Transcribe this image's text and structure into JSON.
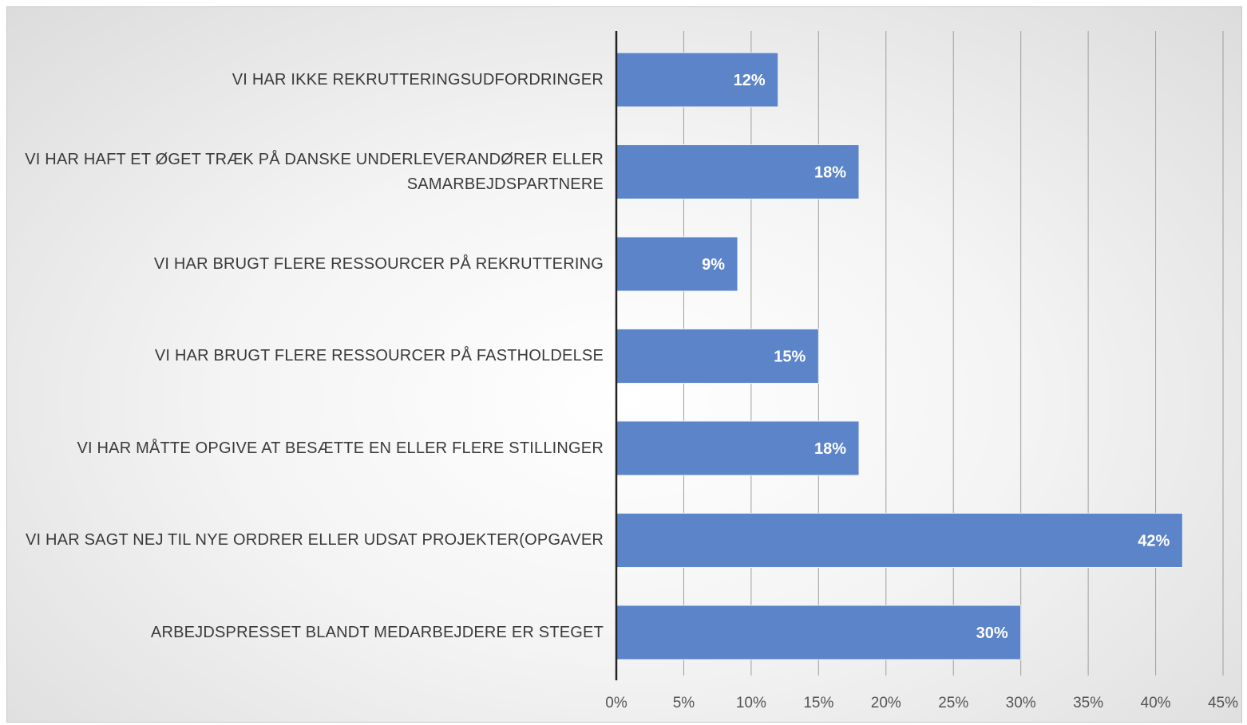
{
  "chart_data": {
    "type": "bar",
    "orientation": "horizontal",
    "categories": [
      "VI HAR IKKE REKRUTTERINGSUDFORDRINGER",
      "VI HAR HAFT ET ØGET TRÆK PÅ DANSKE UNDERLEVERANDØRER ELLER SAMARBEJDSPARTNERE",
      "VI HAR BRUGT FLERE RESSOURCER PÅ REKRUTTERING",
      "VI HAR BRUGT FLERE RESSOURCER PÅ FASTHOLDELSE",
      "VI HAR MÅTTE OPGIVE AT BESÆTTE EN ELLER FLERE STILLINGER",
      "VI HAR SAGT NEJ TIL NYE ORDRER ELLER UDSAT PROJEKTER(OPGAVER",
      "ARBEJDSPRESSET BLANDT MEDARBEJDERE ER STEGET"
    ],
    "values": [
      12,
      18,
      9,
      15,
      18,
      42,
      30
    ],
    "data_labels": [
      "12%",
      "18%",
      "9%",
      "15%",
      "18%",
      "42%",
      "30%"
    ],
    "xlim": [
      0,
      45
    ],
    "xticks": [
      "0%",
      "5%",
      "10%",
      "15%",
      "20%",
      "25%",
      "30%",
      "35%",
      "40%",
      "45%"
    ],
    "title": "",
    "xlabel": "",
    "ylabel": "",
    "grid": "vertical",
    "bar_color": "#5b84c9",
    "grid_color": "#9e9e9e",
    "axis_color": "#222222",
    "label_color": "#ffffff"
  }
}
